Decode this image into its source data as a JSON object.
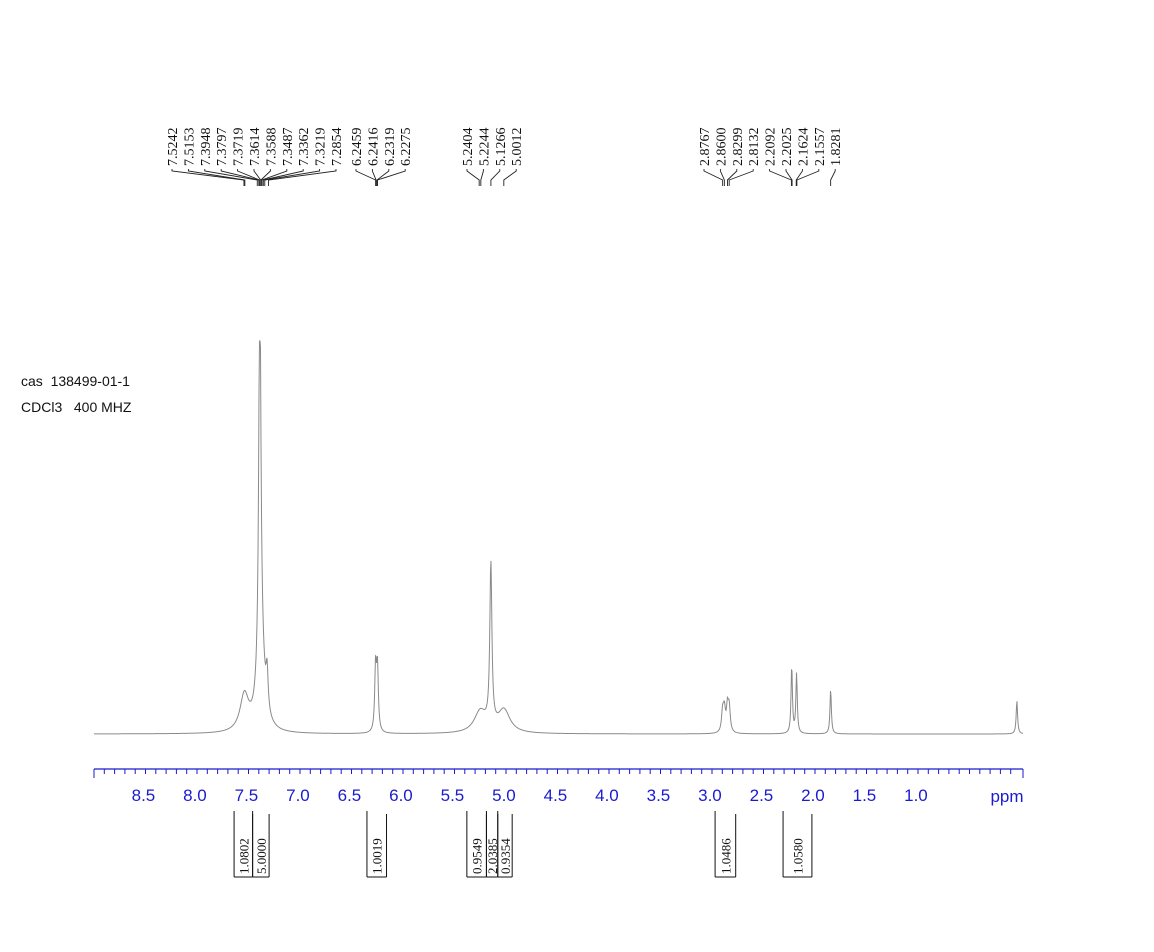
{
  "sample_info": {
    "cas_line": "cas  138499-01-1",
    "solvent_line": "CDCl3   400 MHZ"
  },
  "colors": {
    "axis": "#1a1ad0",
    "spectrum": "#8a8a8a",
    "labels": "#111111"
  },
  "chart_data": {
    "type": "line",
    "title": "",
    "xlabel": "ppm",
    "ylabel": "",
    "x_reversed": true,
    "xlim": [
      8.98,
      0.0
    ],
    "x_ticks": [
      "8.5",
      "8.0",
      "7.5",
      "7.0",
      "6.5",
      "6.0",
      "5.5",
      "5.0",
      "4.5",
      "4.0",
      "3.5",
      "3.0",
      "2.5",
      "2.0",
      "1.5",
      "1.0"
    ],
    "grid": false,
    "peak_groups": [
      {
        "anchor": 7.38,
        "labels": [
          "7.5242",
          "7.5153",
          "7.3948",
          "7.3797",
          "7.3719",
          "7.3614",
          "7.3588",
          "7.3487",
          "7.3362",
          "7.3219",
          "7.2854"
        ]
      },
      {
        "anchor": 6.24,
        "labels": [
          "6.2459",
          "6.2416",
          "6.2319",
          "6.2275"
        ]
      },
      {
        "anchor": 5.1,
        "labels": [
          "5.2404",
          "5.2244",
          "5.1266",
          "5.0012"
        ]
      },
      {
        "anchor": 2.5,
        "labels": [
          "2.8767",
          "2.8600",
          "2.8299",
          "2.8132",
          "2.2092",
          "2.2025",
          "2.1624",
          "2.1557",
          "1.8281"
        ]
      }
    ],
    "peaks": [
      {
        "ppm": 7.52,
        "height": 0.092,
        "width": 0.05
      },
      {
        "ppm": 7.37,
        "height": 1.0,
        "width": 0.012
      },
      {
        "ppm": 7.36,
        "height": 0.2,
        "width": 0.04
      },
      {
        "ppm": 7.3,
        "height": 0.098,
        "width": 0.012
      },
      {
        "ppm": 6.246,
        "height": 0.165,
        "width": 0.01
      },
      {
        "ppm": 6.228,
        "height": 0.16,
        "width": 0.01
      },
      {
        "ppm": 5.23,
        "height": 0.054,
        "width": 0.07
      },
      {
        "ppm": 5.127,
        "height": 0.415,
        "width": 0.012
      },
      {
        "ppm": 5.0,
        "height": 0.058,
        "width": 0.07
      },
      {
        "ppm": 2.877,
        "height": 0.052,
        "width": 0.012
      },
      {
        "ppm": 2.86,
        "height": 0.055,
        "width": 0.012
      },
      {
        "ppm": 2.83,
        "height": 0.062,
        "width": 0.012
      },
      {
        "ppm": 2.813,
        "height": 0.06,
        "width": 0.012
      },
      {
        "ppm": 2.206,
        "height": 0.172,
        "width": 0.008
      },
      {
        "ppm": 2.159,
        "height": 0.152,
        "width": 0.008
      },
      {
        "ppm": 1.828,
        "height": 0.113,
        "width": 0.008
      },
      {
        "ppm": 0.02,
        "height": 0.085,
        "width": 0.008
      }
    ],
    "integrals": [
      {
        "from": 7.62,
        "to": 7.44,
        "label": "1.0802"
      },
      {
        "from": 7.44,
        "to": 7.28,
        "label": "5.0000"
      },
      {
        "from": 6.33,
        "to": 6.14,
        "label": "1.0019"
      },
      {
        "from": 5.36,
        "to": 5.17,
        "label": "0.9549"
      },
      {
        "from": 5.17,
        "to": 5.06,
        "label": "2.0385"
      },
      {
        "from": 5.06,
        "to": 4.92,
        "label": "0.9354"
      },
      {
        "from": 2.95,
        "to": 2.75,
        "label": "1.0486"
      },
      {
        "from": 2.29,
        "to": 2.01,
        "label": "1.0580"
      }
    ]
  }
}
